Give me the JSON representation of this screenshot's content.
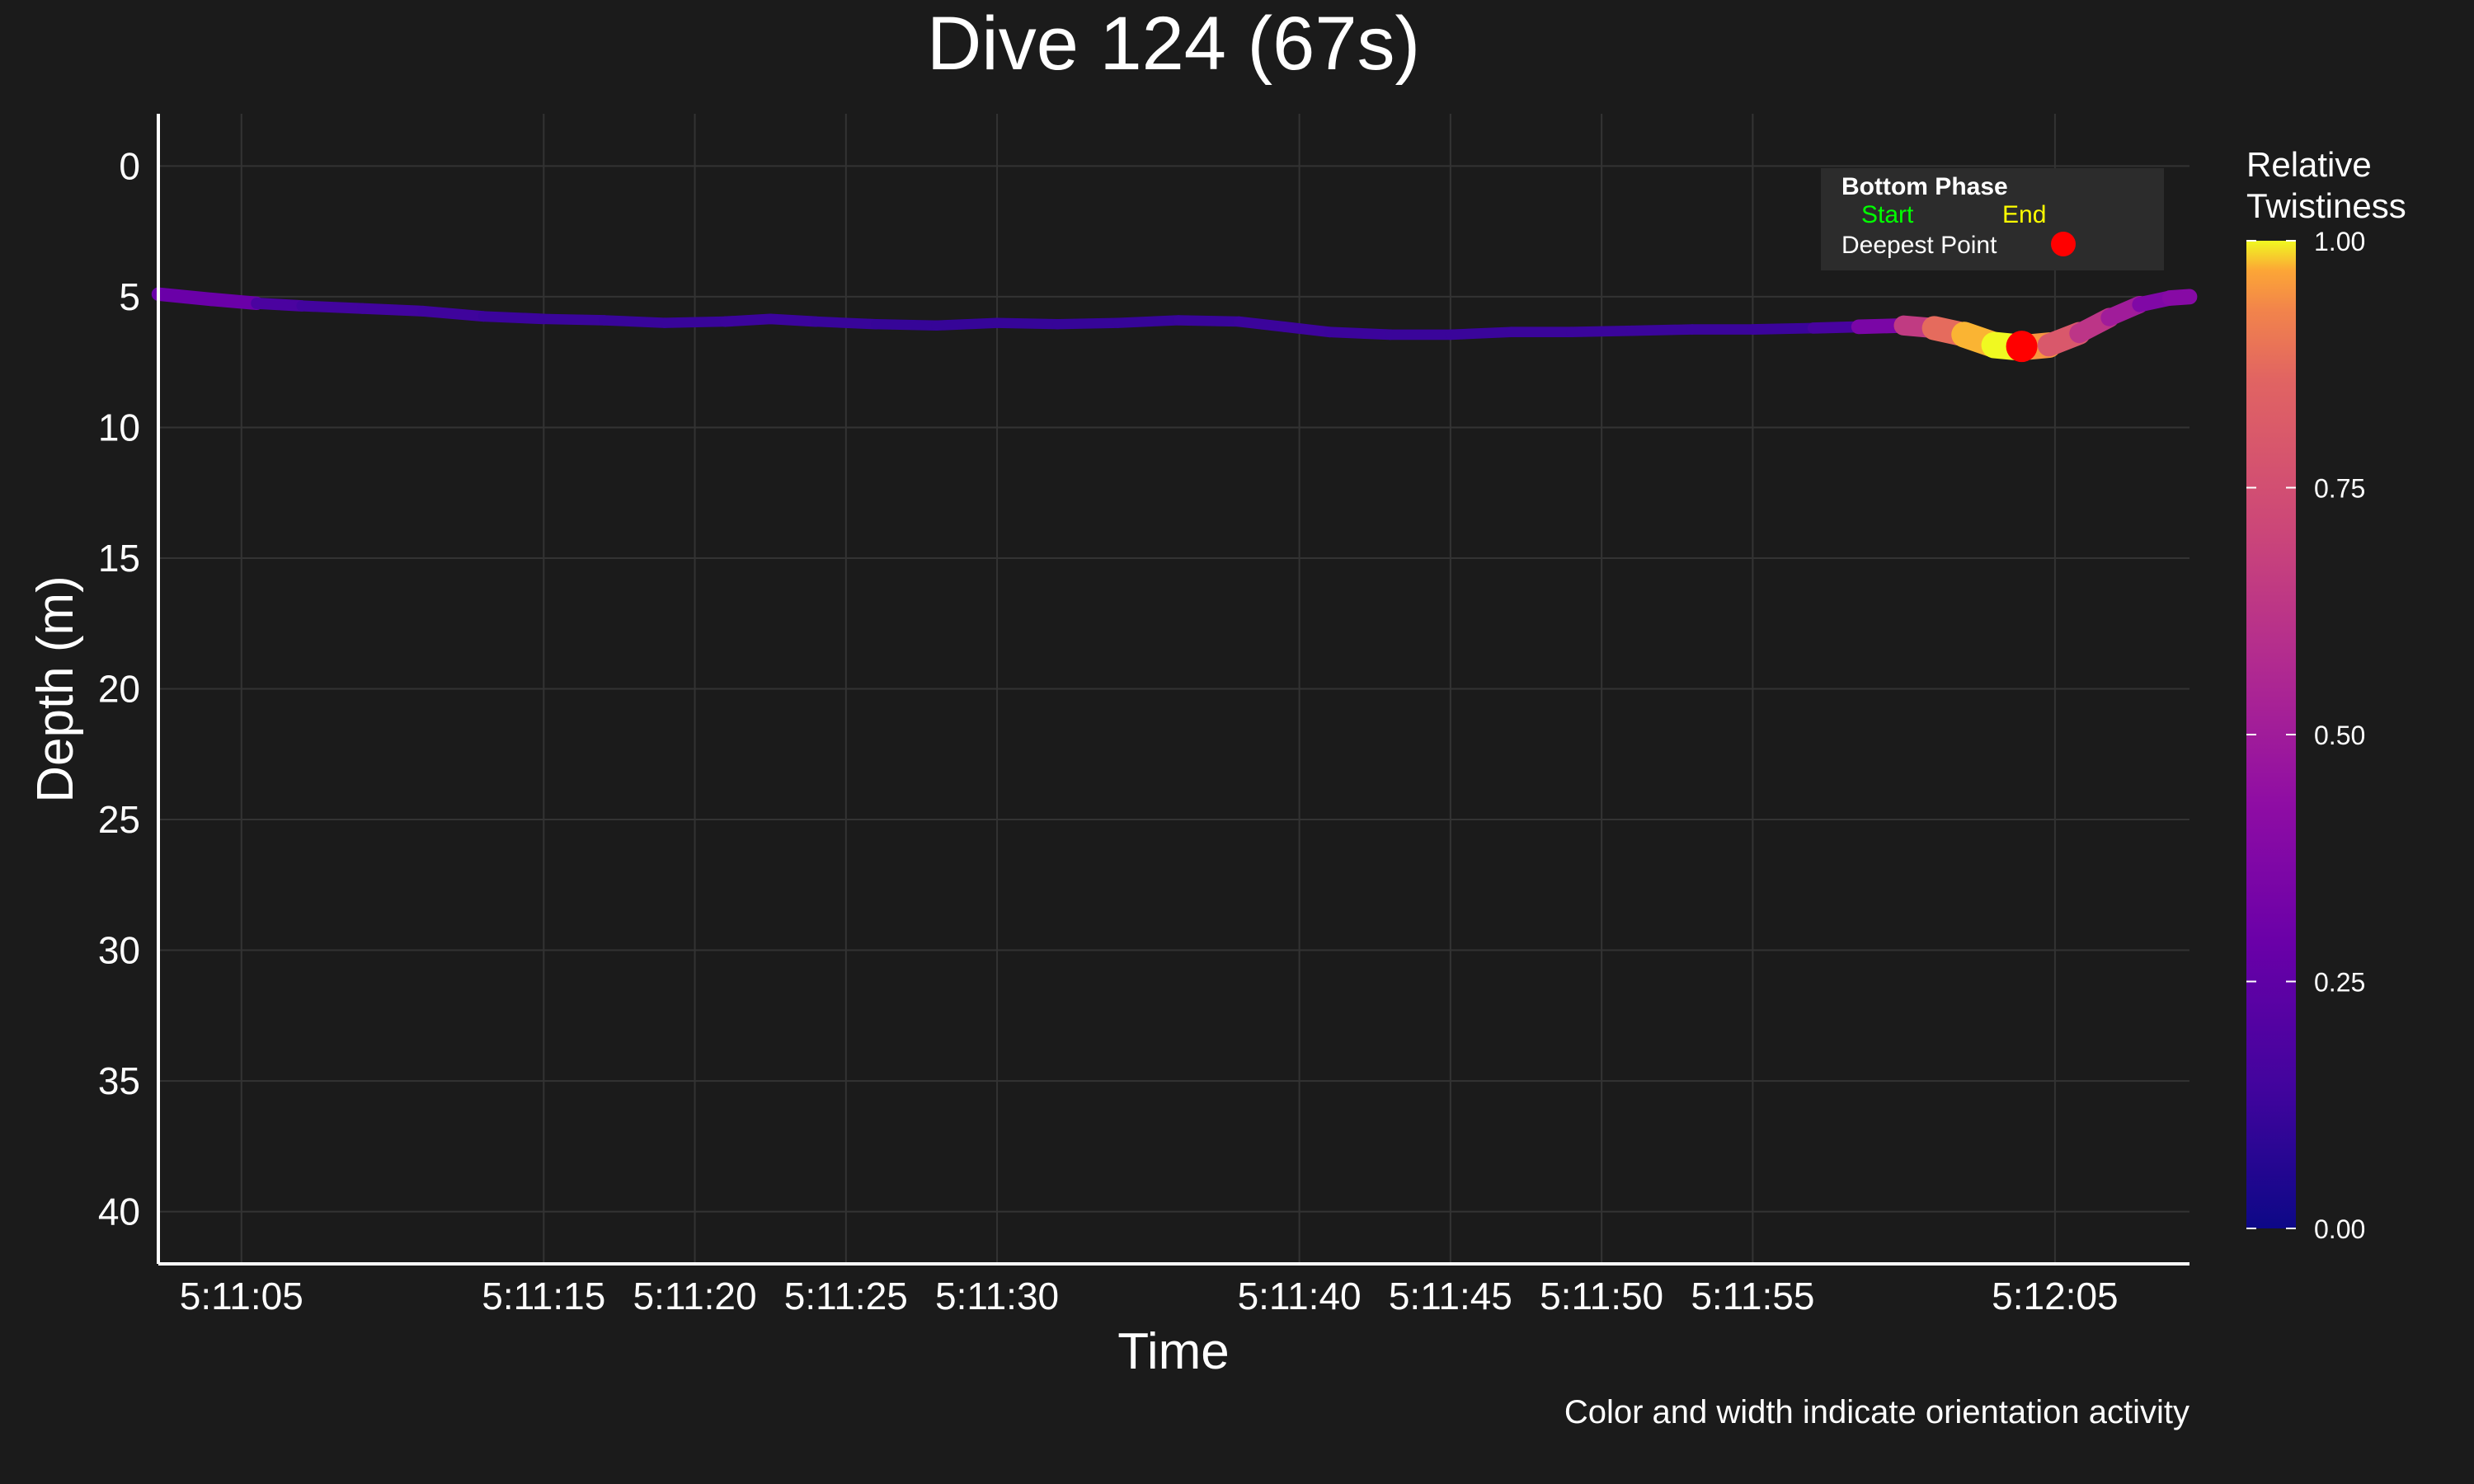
{
  "chart_data": {
    "type": "line",
    "title": "Dive 124 (67s)",
    "xlabel": "Time",
    "ylabel": "Depth (m)",
    "caption": "Color and width indicate orientation activity",
    "x_tick_labels": [
      "5:11:05",
      "5:11:15",
      "5:11:20",
      "5:11:25",
      "5:11:30",
      "5:11:40",
      "5:11:45",
      "5:11:50",
      "5:11:55",
      "5:12:05"
    ],
    "x_tick_seconds": [
      5,
      15,
      20,
      25,
      30,
      40,
      45,
      50,
      55,
      65
    ],
    "xlim_seconds": [
      2.25,
      69.45
    ],
    "x_origin": "5:11:00",
    "y_ticks": [
      0,
      5,
      10,
      15,
      20,
      25,
      30,
      35,
      40
    ],
    "ylim": [
      42,
      -2
    ],
    "y_reversed": true,
    "grid": true,
    "legend": {
      "title": "Bottom Phase",
      "start_label": "Start",
      "end_label": "End",
      "start_color": "#00ff00",
      "end_color": "#ffff00",
      "deepest_label": "Deepest Point",
      "deepest_color": "#ff0000",
      "placement": "top-right"
    },
    "colorbar": {
      "title_line1": "Relative",
      "title_line2": "Twistiness",
      "colormap": "plasma",
      "ticks": [
        "0.00",
        "0.25",
        "0.50",
        "0.75",
        "1.00"
      ],
      "tick_values": [
        0,
        0.25,
        0.5,
        0.75,
        1.0
      ]
    },
    "deepest_point": {
      "time_s": 63.9,
      "depth": 6.9
    },
    "series": [
      {
        "points": [
          [
            2.25,
            4.9,
            0.2
          ],
          [
            4.0,
            5.1,
            0.38
          ],
          [
            5.5,
            5.25,
            0.2
          ],
          [
            7.0,
            5.35,
            0.15
          ],
          [
            9.0,
            5.45,
            0.14
          ],
          [
            11.0,
            5.55,
            0.14
          ],
          [
            13.0,
            5.75,
            0.13
          ],
          [
            15.0,
            5.85,
            0.12
          ],
          [
            17.0,
            5.9,
            0.12
          ],
          [
            19.0,
            6.0,
            0.11
          ],
          [
            21.0,
            5.95,
            0.12
          ],
          [
            22.5,
            5.85,
            0.13
          ],
          [
            24.0,
            5.95,
            0.12
          ],
          [
            26.0,
            6.05,
            0.11
          ],
          [
            28.0,
            6.1,
            0.11
          ],
          [
            30.0,
            6.0,
            0.11
          ],
          [
            32.0,
            6.05,
            0.11
          ],
          [
            34.0,
            6.0,
            0.11
          ],
          [
            36.0,
            5.9,
            0.11
          ],
          [
            38.0,
            5.95,
            0.12
          ],
          [
            39.5,
            6.15,
            0.13
          ],
          [
            41.0,
            6.35,
            0.13
          ],
          [
            43.0,
            6.45,
            0.12
          ],
          [
            45.0,
            6.45,
            0.12
          ],
          [
            47.0,
            6.35,
            0.12
          ],
          [
            49.0,
            6.35,
            0.12
          ],
          [
            51.0,
            6.3,
            0.12
          ],
          [
            53.0,
            6.25,
            0.12
          ],
          [
            55.0,
            6.25,
            0.12
          ],
          [
            57.0,
            6.2,
            0.13
          ],
          [
            58.5,
            6.15,
            0.2
          ],
          [
            60.0,
            6.1,
            0.5
          ],
          [
            61.0,
            6.2,
            0.8
          ],
          [
            62.0,
            6.45,
            0.95
          ],
          [
            63.0,
            6.85,
            1.0
          ],
          [
            63.9,
            6.95,
            1.0
          ],
          [
            64.8,
            6.85,
            0.9
          ],
          [
            65.8,
            6.4,
            0.7
          ],
          [
            66.8,
            5.8,
            0.55
          ],
          [
            67.8,
            5.3,
            0.45
          ],
          [
            68.8,
            5.05,
            0.3
          ],
          [
            69.45,
            5.0,
            0.5
          ]
        ]
      }
    ]
  }
}
